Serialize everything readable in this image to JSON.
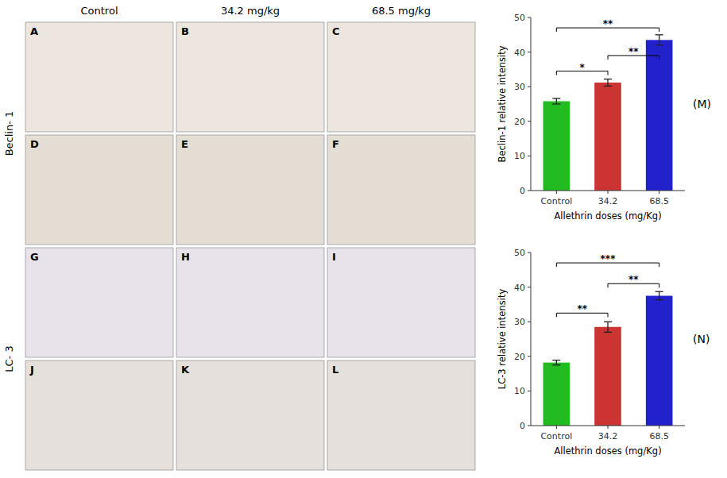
{
  "chart_data": [
    {
      "type": "bar",
      "title": "(M)",
      "xlabel": "Allethrin doses (mg/Kg)",
      "ylabel": "Beclin-1 relative intensity",
      "categories": [
        "Control",
        "34.2",
        "68.5"
      ],
      "values": [
        25.8,
        31.2,
        43.5
      ],
      "errors": [
        0.8,
        1.0,
        1.5
      ],
      "colors": [
        "#22bb22",
        "#cc3333",
        "#2222cc"
      ],
      "ylim": [
        0,
        50
      ],
      "yticks": [
        0,
        10,
        20,
        30,
        40,
        50
      ],
      "grid": false,
      "annotations": [
        {
          "x1": "Control",
          "x2": "34.2",
          "y": 34.5,
          "label": "*"
        },
        {
          "x1": "Control",
          "x2": "68.5",
          "y": 47.0,
          "label": "**"
        },
        {
          "x1": "34.2",
          "x2": "68.5",
          "y": 39.0,
          "label": "**"
        }
      ]
    },
    {
      "type": "bar",
      "title": "(N)",
      "xlabel": "Allethrin doses (mg/Kg)",
      "ylabel": "LC-3 relative intensity",
      "categories": [
        "Control",
        "34.2",
        "68.5"
      ],
      "values": [
        18.2,
        28.5,
        37.5
      ],
      "errors": [
        0.7,
        1.5,
        1.2
      ],
      "colors": [
        "#22bb22",
        "#cc3333",
        "#2222cc"
      ],
      "ylim": [
        0,
        50
      ],
      "yticks": [
        0,
        10,
        20,
        30,
        40,
        50
      ],
      "grid": false,
      "annotations": [
        {
          "x1": "Control",
          "x2": "34.2",
          "y": 32.5,
          "label": "**"
        },
        {
          "x1": "Control",
          "x2": "68.5",
          "y": 47.0,
          "label": "***"
        },
        {
          "x1": "34.2",
          "x2": "68.5",
          "y": 41.0,
          "label": "**"
        }
      ]
    }
  ],
  "image_panels": {
    "top_labels": [
      "Control",
      "34.2 mg/kg",
      "68.5 mg/kg"
    ],
    "row_labels": [
      "Beclin- 1",
      "LC- 3"
    ],
    "letter_labels": [
      [
        "A",
        "B",
        "C"
      ],
      [
        "D",
        "E",
        "F"
      ],
      [
        "G",
        "H",
        "I"
      ],
      [
        "J",
        "K",
        "L"
      ]
    ]
  }
}
